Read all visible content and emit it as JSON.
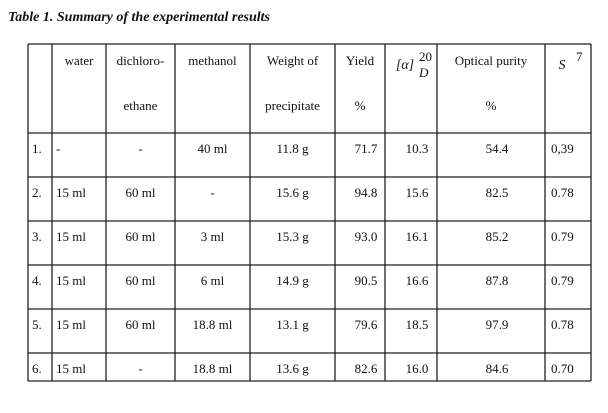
{
  "title": "Table 1. Summary of the experimental results",
  "table": {
    "header": [
      {
        "lines": [
          "water"
        ]
      },
      {
        "lines": [
          "dichloro-",
          "ethane"
        ]
      },
      {
        "lines": [
          "methanol"
        ]
      },
      {
        "lines": [
          "Weight of",
          "precipitate"
        ]
      },
      {
        "lines": [
          "Yield",
          "%"
        ]
      },
      {
        "main": "[α]",
        "sup": "20",
        "sub": "D"
      },
      {
        "lines": [
          "Optical purity",
          "%"
        ]
      },
      {
        "main": "S",
        "sup": "7"
      }
    ],
    "rows": [
      [
        "1.",
        "-",
        "-",
        "40 ml",
        "11.8  g",
        "71.7",
        "10.3",
        "54.4",
        "0,39"
      ],
      [
        "2.",
        "15 ml",
        "60 ml",
        "-",
        "15.6 g",
        "94.8",
        "15.6",
        "82.5",
        "0.78"
      ],
      [
        "3.",
        "15 ml",
        "60 ml",
        "3 ml",
        "15.3 g",
        "93.0",
        "16.1",
        "85.2",
        "0.79"
      ],
      [
        "4.",
        "15 ml",
        "60 ml",
        "6 ml",
        "14.9 g",
        "90.5",
        "16.6",
        "87.8",
        "0.79"
      ],
      [
        "5.",
        "15 ml",
        "60 ml",
        "18.8 ml",
        "13.1 g",
        "79.6",
        "18.5",
        "97.9",
        "0.78"
      ],
      [
        "6.",
        "15 ml",
        "-",
        "18.8 ml",
        "13.6 g",
        "82.6",
        "16.0",
        "84.6",
        "0.70"
      ]
    ]
  }
}
